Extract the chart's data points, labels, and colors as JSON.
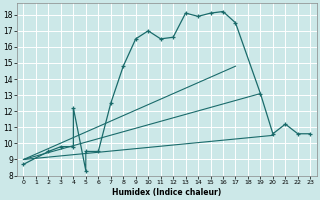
{
  "xlabel": "Humidex (Indice chaleur)",
  "bg_color": "#cce8e8",
  "grid_color": "#b0d0d0",
  "line_color": "#1a6b6b",
  "xlim": [
    -0.5,
    23.5
  ],
  "ylim": [
    8,
    18.7
  ],
  "yticks": [
    8,
    9,
    10,
    11,
    12,
    13,
    14,
    15,
    16,
    17,
    18
  ],
  "xticks": [
    0,
    1,
    2,
    3,
    4,
    5,
    6,
    7,
    8,
    9,
    10,
    11,
    12,
    13,
    14,
    15,
    16,
    17,
    18,
    19,
    20,
    21,
    22,
    23
  ],
  "series_main": {
    "x": [
      0,
      2,
      3,
      4,
      4,
      5,
      5,
      6,
      7,
      8,
      9,
      10,
      11,
      12,
      13,
      14,
      15,
      16,
      17,
      19,
      20,
      21,
      22,
      23
    ],
    "y": [
      8.7,
      9.5,
      9.8,
      9.8,
      12.2,
      8.3,
      9.5,
      9.5,
      12.5,
      14.8,
      16.5,
      17.0,
      16.5,
      16.6,
      18.1,
      17.9,
      18.1,
      18.2,
      17.5,
      13.1,
      10.6,
      11.2,
      10.6,
      10.6
    ]
  },
  "series_lines": [
    {
      "x": [
        0,
        20
      ],
      "y": [
        9.0,
        10.5
      ]
    },
    {
      "x": [
        0,
        19
      ],
      "y": [
        9.0,
        13.1
      ]
    },
    {
      "x": [
        0,
        17
      ],
      "y": [
        9.0,
        14.8
      ]
    }
  ]
}
